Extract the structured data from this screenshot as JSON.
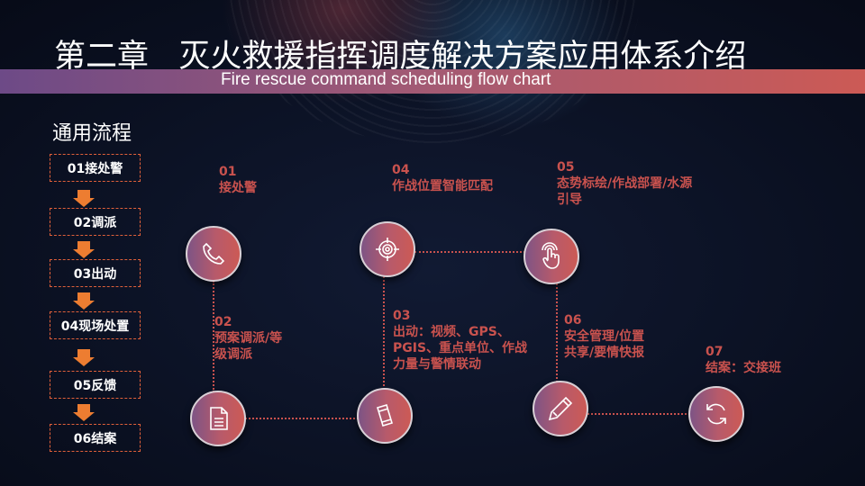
{
  "header": {
    "title": "第二章   灭火救援指挥调度解决方案应用体系介绍",
    "subtitle": "Fire rescue command scheduling flow chart"
  },
  "section_title": "通用流程",
  "steps": [
    "01接处警",
    "02调派",
    "03出动",
    "04现场处置",
    "05反馈",
    "06结案"
  ],
  "flow": [
    {
      "num": "01",
      "text": "接处警",
      "icon": "phone-icon"
    },
    {
      "num": "02",
      "text": "预案调派/等级调派",
      "icon": "document-icon"
    },
    {
      "num": "03",
      "text": "出动：视频、GPS、PGIS、重点单位、作战力量与警情联动",
      "icon": "mobile-icon"
    },
    {
      "num": "04",
      "text": "作战位置智能匹配",
      "icon": "target-icon"
    },
    {
      "num": "05",
      "text": "态势标绘/作战部署/水源引导",
      "icon": "hand-touch-icon"
    },
    {
      "num": "06",
      "text": "安全管理/位置共享/要情快报",
      "icon": "pencil-icon"
    },
    {
      "num": "07",
      "text": "结案：交接班",
      "icon": "refresh-icon"
    }
  ],
  "colors": {
    "accent": "#c9524e",
    "arrow": "#ed7d31",
    "band_start": "#6d4a87",
    "band_end": "#cc5a55",
    "background": "#0a1024"
  }
}
